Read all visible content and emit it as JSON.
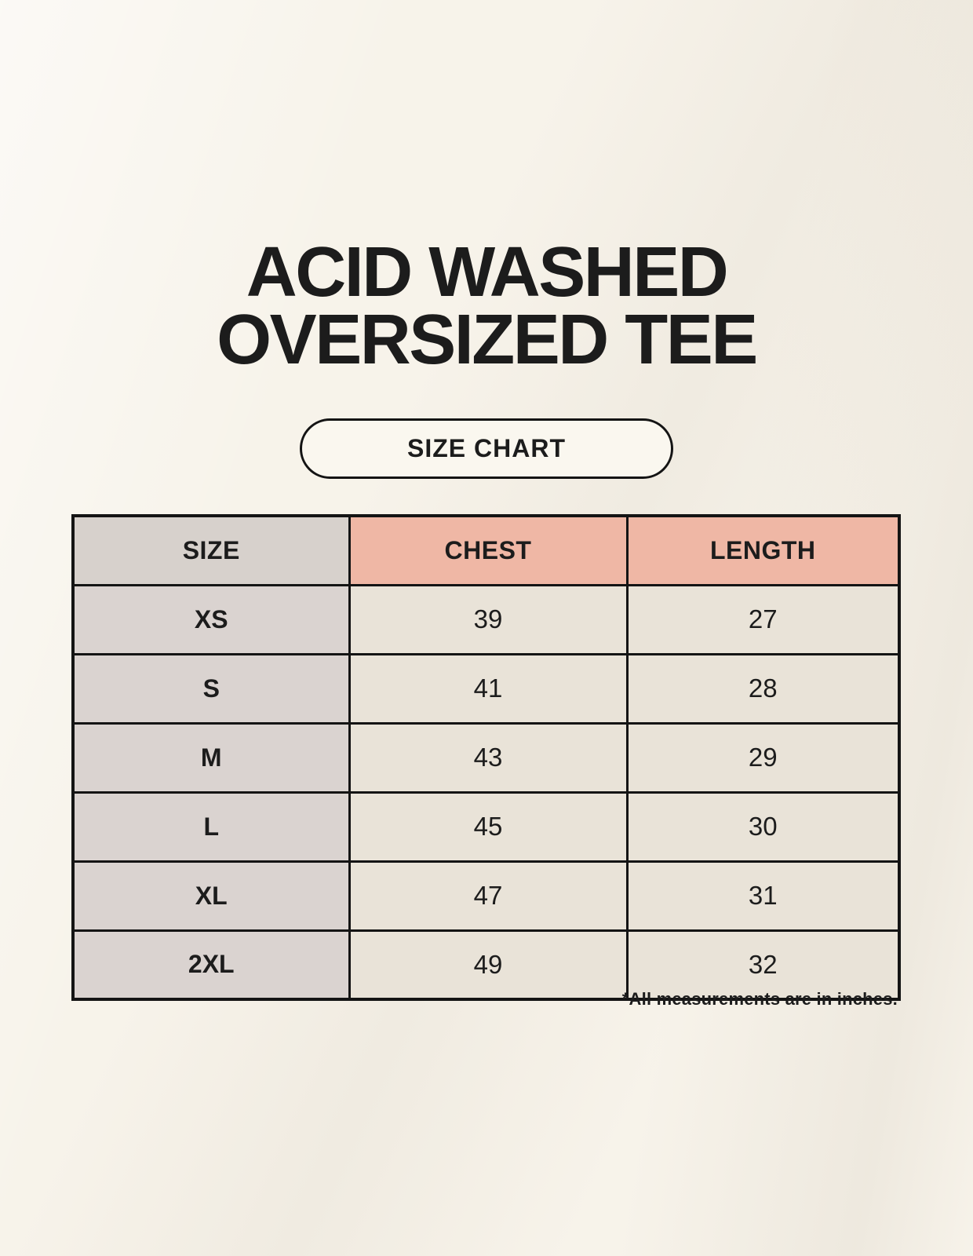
{
  "header": {
    "title_line1": "ACID WASHED",
    "title_line2": "OVERSIZED TEE",
    "size_chart_label": "SIZE CHART"
  },
  "chart_data": {
    "type": "table",
    "title": "ACID WASHED OVERSIZED TEE",
    "subtitle": "SIZE CHART",
    "columns": [
      "SIZE",
      "CHEST",
      "LENGTH"
    ],
    "rows": [
      [
        "XS",
        "39",
        "27"
      ],
      [
        "S",
        "41",
        "28"
      ],
      [
        "M",
        "43",
        "29"
      ],
      [
        "L",
        "45",
        "30"
      ],
      [
        "XL",
        "47",
        "31"
      ],
      [
        "2XL",
        "49",
        "32"
      ]
    ],
    "units": "inches"
  },
  "footnote": "*All measurements are in inches.",
  "colors": {
    "background": "#f7f3ea",
    "header_size_bg": "#d7d1cc",
    "header_measure_bg": "#efb7a5",
    "row_label_bg": "#dad3d0",
    "row_value_bg": "#e9e3d8",
    "border": "#141414",
    "text": "#1c1c1c"
  }
}
